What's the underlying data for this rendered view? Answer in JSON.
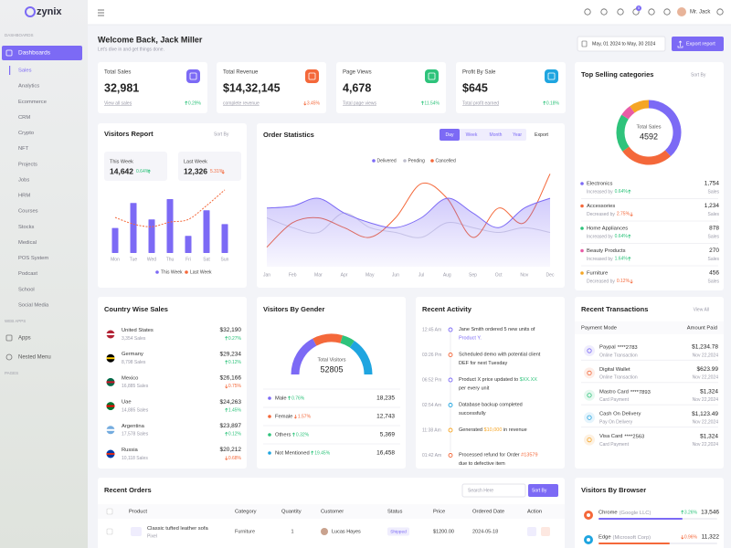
{
  "brand": "zynix",
  "sidebar": {
    "section_main": "DASHBOARDS",
    "dashboards": "Dashboards",
    "items": [
      "Sales",
      "Analytics",
      "Ecommerce",
      "CRM",
      "Crypto",
      "NFT",
      "Projects",
      "Jobs",
      "HRM",
      "Courses",
      "Stocks",
      "Medical",
      "POS System",
      "Podcast",
      "School",
      "Social Media"
    ],
    "section_apps": "WEB APPS",
    "apps": "Apps",
    "nested": "Nested Menu",
    "section_pages": "PAGES"
  },
  "header": {
    "user": "Mr. Jack",
    "notifications": "5"
  },
  "welcome": {
    "title": "Welcome Back, Jack Miller",
    "subtitle": "Let's dive in and get things done.",
    "date_range": "May, 01 2024 to May, 30 2024",
    "export": "Export report"
  },
  "stats": [
    {
      "label": "Total Sales",
      "value": "32,981",
      "link": "View all sales",
      "change": "0.29%",
      "trend": "up",
      "color": "#7c6af5"
    },
    {
      "label": "Total Revenue",
      "value": "$14,32,145",
      "link": "complete revenue",
      "change": "3.45%",
      "trend": "down",
      "color": "#f4683a"
    },
    {
      "label": "Page Views",
      "value": "4,678",
      "link": "Total page views",
      "change": "11.54%",
      "trend": "up",
      "color": "#2ec37b"
    },
    {
      "label": "Profit By Sale",
      "value": "$645",
      "link": "Total profit earned",
      "change": "0.18%",
      "trend": "up",
      "color": "#1fa5e0"
    }
  ],
  "visitors_report": {
    "title": "Visitors Report",
    "sort": "Sort By",
    "this_week": {
      "label": "This Week",
      "value": "14,642",
      "change": "0.64%"
    },
    "last_week": {
      "label": "Last Week",
      "value": "12,326",
      "change": "5.31%"
    },
    "days": [
      "Mon",
      "Tue",
      "Wed",
      "Thu",
      "Fri",
      "Sat",
      "Sun"
    ],
    "ylim": [
      0,
      100
    ],
    "series": [
      {
        "name": "This Week",
        "color": "#7c6af5",
        "values": [
          38,
          76,
          51,
          82,
          26,
          65,
          44
        ]
      },
      {
        "name": "Last Week",
        "color": "#f4683a",
        "values": [
          54,
          44,
          40,
          47,
          51,
          72,
          96
        ]
      }
    ]
  },
  "order_statistics": {
    "title": "Order Statistics",
    "tabs": [
      "Day",
      "Week",
      "Month",
      "Year"
    ],
    "export": "Export",
    "months": [
      "Jan",
      "Feb",
      "Mar",
      "Apr",
      "May",
      "Jun",
      "Jul",
      "Aug",
      "Sep",
      "Oct",
      "Nov",
      "Dec"
    ],
    "ylim": [
      0,
      100
    ],
    "series": [
      {
        "name": "Delivered",
        "color": "#7c6af5",
        "values": [
          60,
          62,
          70,
          55,
          45,
          40,
          50,
          70,
          55,
          40,
          60,
          70
        ]
      },
      {
        "name": "Pending",
        "color": "#d6d6e2",
        "values": [
          50,
          40,
          35,
          55,
          40,
          35,
          30,
          45,
          40,
          35,
          40,
          35
        ]
      },
      {
        "name": "Cancelled",
        "color": "#f4683a",
        "values": [
          20,
          45,
          50,
          40,
          30,
          50,
          85,
          70,
          30,
          60,
          45,
          95
        ]
      }
    ]
  },
  "top_selling": {
    "title": "Top Selling categories",
    "sort": "Sort By",
    "center_label": "Total Sales",
    "total": "4592",
    "unit": "Sales",
    "items": [
      {
        "name": "Electronics",
        "note": "Increased by",
        "change": "0.64%",
        "trend": "up",
        "color": "#7c6af5"
      },
      {
        "name": "Accessories",
        "note": "Decreased by",
        "change": "2.75%",
        "trend": "down",
        "color": "#f4683a"
      },
      {
        "name": "Home Appliances",
        "note": "Increased by",
        "change": "0.64%",
        "trend": "up",
        "color": "#2ec37b"
      },
      {
        "name": "Beauty Products",
        "note": "Increased by",
        "change": "1.64%",
        "trend": "up",
        "color": "#e85ca6"
      },
      {
        "name": "Furniture",
        "note": "Decreased by",
        "change": "0.12%",
        "trend": "down",
        "color": "#f5a524"
      }
    ],
    "values": [
      1754,
      1234,
      878,
      270,
      456
    ],
    "value_labels": [
      "1,754",
      "1,234",
      "878",
      "270",
      "456"
    ]
  },
  "country_sales": {
    "title": "Country Wise Sales",
    "rows": [
      {
        "country": "United States",
        "sales": "3,354 Sales",
        "amount": "$32,190",
        "change": "0.27%",
        "trend": "up"
      },
      {
        "country": "Germany",
        "sales": "8,798 Sales",
        "amount": "$29,234",
        "change": "0.12%",
        "trend": "up"
      },
      {
        "country": "Mexico",
        "sales": "16,885 Sales",
        "amount": "$26,166",
        "change": "0.75%",
        "trend": "down"
      },
      {
        "country": "Uae",
        "sales": "14,885 Sales",
        "amount": "$24,263",
        "change": "1.45%",
        "trend": "up"
      },
      {
        "country": "Argentina",
        "sales": "17,578 Sales",
        "amount": "$23,897",
        "change": "0.12%",
        "trend": "up"
      },
      {
        "country": "Russia",
        "sales": "10,118 Sales",
        "amount": "$20,212",
        "change": "0.68%",
        "trend": "down"
      }
    ]
  },
  "visitors_gender": {
    "title": "Visitors By Gender",
    "center_label": "Total Visitors",
    "total": "52805",
    "rows": [
      {
        "name": "Male",
        "change": "0.76%",
        "trend": "up",
        "color": "#7c6af5"
      },
      {
        "name": "Female",
        "change": "1.57%",
        "trend": "down",
        "color": "#f4683a"
      },
      {
        "name": "Others",
        "change": "0.32%",
        "trend": "up",
        "color": "#2ec37b"
      },
      {
        "name": "Not Mentioned",
        "change": "19.45%",
        "trend": "up",
        "color": "#1fa5e0"
      }
    ],
    "values": [
      18235,
      12743,
      5369,
      16458
    ],
    "value_labels": [
      "18,235",
      "12,743",
      "5,369",
      "16,458"
    ]
  },
  "recent_activity": {
    "title": "Recent Activity",
    "items": [
      {
        "time": "12:45 Am",
        "dot": "#7c6af5",
        "lines": [
          [
            {
              "text": "Jane Smith ordered 5 new units of"
            }
          ],
          [
            {
              "text": "Product Y.",
              "color": "#7c6af5"
            }
          ]
        ]
      },
      {
        "time": "03:26 Pm",
        "dot": "#f4683a",
        "lines": [
          [
            {
              "text": "Scheduled demo with potential client"
            }
          ],
          [
            {
              "text": "DEF for next Tuesday"
            }
          ]
        ]
      },
      {
        "time": "06:52 Pm",
        "dot": "#7c6af5",
        "lines": [
          [
            {
              "text": "Product X price updated to "
            },
            {
              "text": "$XX.XX",
              "color": "#2ec37b"
            }
          ],
          [
            {
              "text": "per every unit"
            }
          ]
        ]
      },
      {
        "time": "02:54 Am",
        "dot": "#1fa5e0",
        "lines": [
          [
            {
              "text": "Database backup completed"
            }
          ],
          [
            {
              "text": "successfully"
            }
          ]
        ]
      },
      {
        "time": "11:38 Am",
        "dot": "#f5a524",
        "lines": [
          [
            {
              "text": "Generated "
            },
            {
              "text": "$10,000",
              "color": "#f5a524"
            },
            {
              "text": " in revenue"
            }
          ]
        ]
      },
      {
        "time": "01:42 Am",
        "dot": "#f4683a",
        "lines": [
          [
            {
              "text": "Processed refund for Order "
            },
            {
              "text": "#13579",
              "color": "#f4683a"
            }
          ],
          [
            {
              "text": "due to defective item"
            }
          ]
        ]
      }
    ]
  },
  "recent_transactions": {
    "title": "Recent Transactions",
    "view_all": "View All",
    "headers": [
      "Payment Mode",
      "Amount Paid"
    ],
    "rows": [
      {
        "name": "Paypal",
        "card": "****2783",
        "type": "Online Transaction",
        "amount": "$1,234.78",
        "date": "Nov 22,2024"
      },
      {
        "name": "Digital Wallet",
        "type": "Online Transaction",
        "amount": "$623.99",
        "date": "Nov 22,2024"
      },
      {
        "name": "Mastro Card",
        "card": "****7893",
        "type": "Card Payment",
        "amount": "$1,324",
        "date": "Nov 22,2024"
      },
      {
        "name": "Cash On Delivery",
        "type": "Pay On Delivery",
        "amount": "$1,123.49",
        "date": "Nov 22,2024"
      },
      {
        "name": "Visa Card",
        "card": "****2563",
        "type": "Card Payment",
        "amount": "$1,324",
        "date": "Nov 22,2024"
      }
    ]
  },
  "recent_orders": {
    "title": "Recent Orders",
    "search": "Search Here",
    "sort": "Sort By",
    "headers": [
      "Product",
      "Category",
      "Quantity",
      "Customer",
      "Status",
      "Price",
      "Ordered Date",
      "Action"
    ],
    "rows": [
      {
        "product": "Classic tufted leather sofa",
        "brand": "Pixel",
        "category": "Furniture",
        "quantity": "1",
        "customer": "Lucas Hayes",
        "status": "Shipped",
        "price": "$1200.00",
        "date": "2024-05-18"
      }
    ]
  },
  "visitors_browser": {
    "title": "Visitors By Browser",
    "rows": [
      {
        "name": "Chrome",
        "company": "(Google LLC)",
        "change": "3.26%",
        "trend": "up",
        "value": "13,546"
      },
      {
        "name": "Edge",
        "company": "(Microsoft Corp)",
        "change": "0.96%",
        "trend": "down",
        "value": "11,322"
      }
    ]
  }
}
